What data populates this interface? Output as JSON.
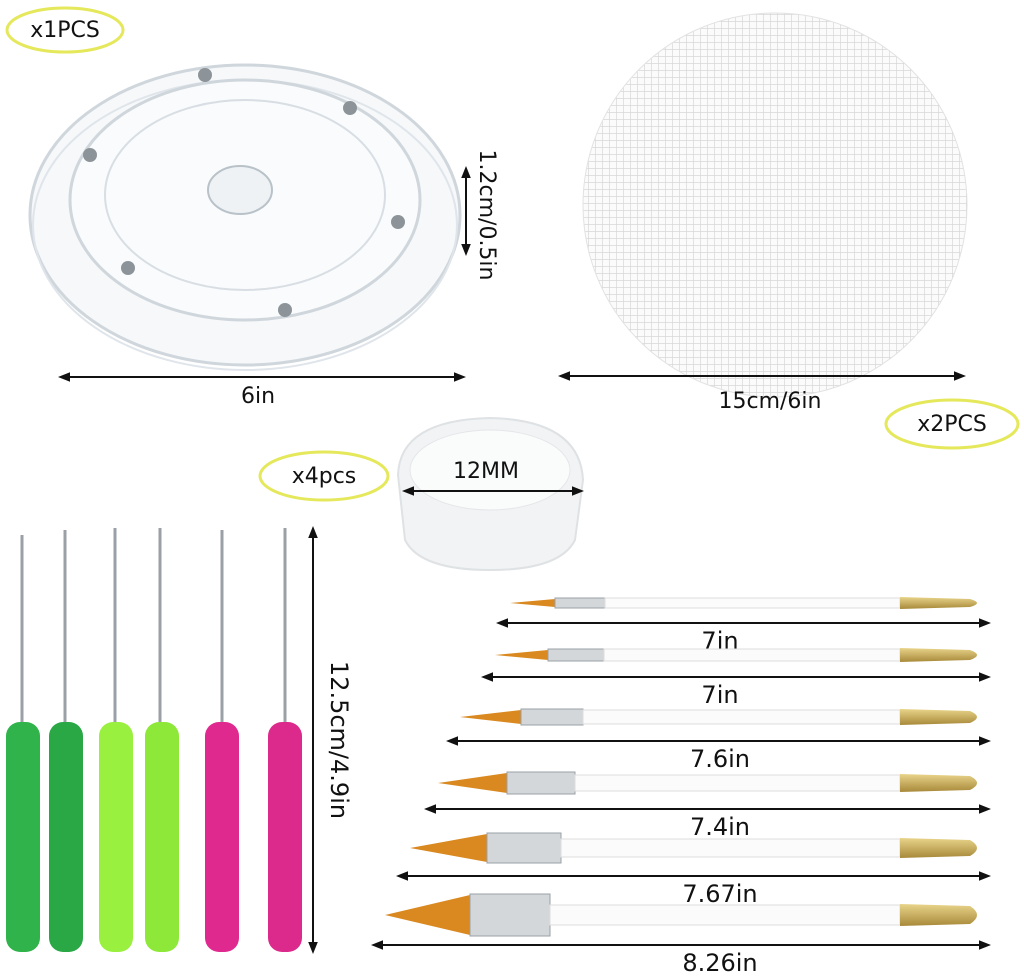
{
  "badges": [
    "x1PCS",
    "x2PCS",
    "x4pcs"
  ],
  "dimensions": {
    "turntable_height": "1.2cm/0.5in",
    "turntable_width": "6in",
    "mesh_width": "15cm/6in",
    "block_width": "12MM",
    "scriber_length": "12.5cm/4.9in",
    "brush_lengths": [
      "7in",
      "7in",
      "7.6in",
      "7.4in",
      "7.67in",
      "8.26in"
    ]
  }
}
